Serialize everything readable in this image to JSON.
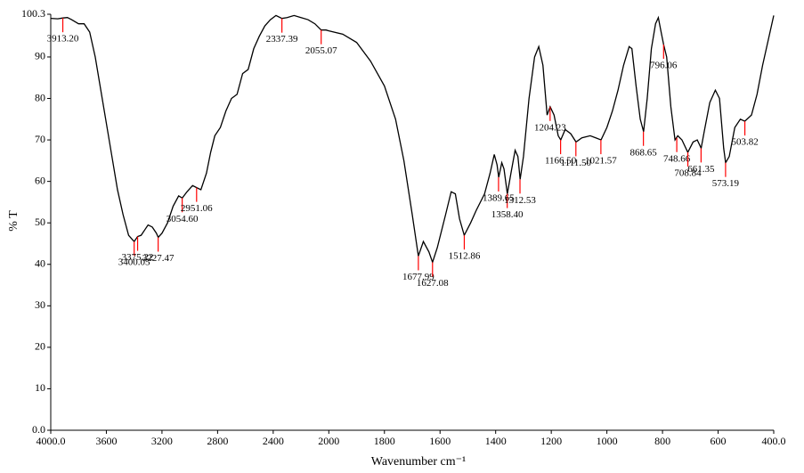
{
  "chart_data": {
    "type": "line",
    "x_label": "Wavenumber cm⁻¹",
    "y_label": "% T",
    "xlim": [
      4000,
      400
    ],
    "ylim": [
      0,
      100.3
    ],
    "x_expand_below": 2000,
    "x_expand_factor": 2,
    "xticks": [
      {
        "value": 4000,
        "label": "4000.0"
      },
      3600,
      3200,
      2800,
      2400,
      2000,
      1800,
      1600,
      1400,
      1200,
      1000,
      800,
      600,
      {
        "value": 400,
        "label": "400.0"
      }
    ],
    "yticks": [
      {
        "value": 0,
        "label": "0.0"
      },
      10,
      20,
      30,
      40,
      50,
      60,
      70,
      80,
      90,
      {
        "value": 100.3,
        "label": "100.3"
      }
    ],
    "x": [
      4000,
      3950,
      3913,
      3880,
      3850,
      3800,
      3760,
      3720,
      3680,
      3640,
      3600,
      3560,
      3520,
      3480,
      3440,
      3400,
      3375,
      3350,
      3320,
      3300,
      3270,
      3240,
      3227,
      3200,
      3160,
      3120,
      3080,
      3054,
      3020,
      2980,
      2951,
      2920,
      2880,
      2850,
      2820,
      2780,
      2740,
      2700,
      2660,
      2620,
      2580,
      2540,
      2500,
      2460,
      2420,
      2380,
      2337,
      2300,
      2250,
      2200,
      2150,
      2100,
      2055,
      2020,
      2000,
      1950,
      1900,
      1850,
      1800,
      1760,
      1730,
      1700,
      1678,
      1660,
      1640,
      1627,
      1610,
      1580,
      1560,
      1545,
      1530,
      1513,
      1490,
      1470,
      1440,
      1420,
      1405,
      1395,
      1389,
      1378,
      1370,
      1358,
      1345,
      1330,
      1320,
      1312,
      1300,
      1280,
      1260,
      1245,
      1230,
      1215,
      1204,
      1190,
      1175,
      1166,
      1150,
      1130,
      1111,
      1090,
      1060,
      1040,
      1021,
      1000,
      980,
      960,
      940,
      920,
      910,
      895,
      880,
      868,
      855,
      840,
      825,
      815,
      805,
      796,
      785,
      770,
      755,
      745,
      730,
      709,
      690,
      675,
      661,
      650,
      630,
      610,
      595,
      580,
      573,
      560,
      540,
      520,
      504,
      480,
      460,
      440,
      420,
      400
    ],
    "series": [
      {
        "color": "#000000",
        "values": [
          99.3,
          99.2,
          99.4,
          99.5,
          99,
          98,
          98,
          96,
          90,
          82,
          74,
          66,
          58,
          52,
          47,
          45.5,
          46.7,
          47,
          48.5,
          49.5,
          49,
          47.5,
          46.5,
          47.5,
          50,
          54,
          56.5,
          56,
          57.5,
          59,
          58.5,
          58,
          62,
          67,
          71,
          73,
          77,
          80,
          81,
          86,
          87,
          92,
          95,
          97.5,
          99,
          100,
          99.3,
          99.5,
          100,
          99.5,
          99,
          98,
          96.5,
          96.5,
          96.3,
          95.5,
          93.5,
          89,
          83,
          75,
          65,
          52,
          42,
          45.5,
          43,
          40.5,
          44,
          52,
          57.5,
          57,
          51,
          47,
          50,
          53,
          57,
          62,
          66.5,
          64,
          61,
          64.5,
          63,
          57,
          62,
          67.5,
          66,
          60.5,
          66,
          80,
          90,
          92.5,
          88,
          76,
          78,
          76,
          71,
          70,
          72.5,
          71.5,
          69.5,
          70.5,
          71,
          70.5,
          70,
          73,
          77,
          82,
          88,
          92.5,
          92,
          83,
          75,
          72,
          80,
          92,
          98,
          99.5,
          96,
          93,
          90,
          78,
          70,
          71,
          70,
          67,
          69.5,
          70,
          68,
          72,
          79,
          82,
          80,
          68,
          64.5,
          66,
          73,
          75,
          74.5,
          76,
          81,
          88,
          94,
          100
        ]
      }
    ],
    "annotation_color": "#ff0000",
    "annotations": [
      {
        "x": 3913.2,
        "y": 99.4,
        "label": "3913.20"
      },
      {
        "x": 3400.05,
        "y": 45.5,
        "label": "3400.05"
      },
      {
        "x": 3375.22,
        "y": 46.7,
        "label": "3375.22"
      },
      {
        "x": 3227.47,
        "y": 46.5,
        "label": "3227.47"
      },
      {
        "x": 3054.6,
        "y": 56,
        "label": "3054.60"
      },
      {
        "x": 2951.06,
        "y": 58.5,
        "label": "2951.06"
      },
      {
        "x": 2337.39,
        "y": 99.3,
        "label": "2337.39"
      },
      {
        "x": 2055.07,
        "y": 96.5,
        "label": "2055.07"
      },
      {
        "x": 1677.99,
        "y": 42,
        "label": "1677.99"
      },
      {
        "x": 1627.08,
        "y": 40.5,
        "label": "1627.08"
      },
      {
        "x": 1512.86,
        "y": 47,
        "label": "1512.86"
      },
      {
        "x": 1389.65,
        "y": 61,
        "label": "1389.65"
      },
      {
        "x": 1358.4,
        "y": 57,
        "label": "1358.40"
      },
      {
        "x": 1312.53,
        "y": 60.5,
        "label": "1312.53"
      },
      {
        "x": 1204.23,
        "y": 78,
        "label": "1204.23"
      },
      {
        "x": 1166.5,
        "y": 70,
        "label": "1166.50"
      },
      {
        "x": 1111.5,
        "y": 69.5,
        "label": "1111.50"
      },
      {
        "x": 1021.57,
        "y": 70,
        "label": "1021.57"
      },
      {
        "x": 868.65,
        "y": 72,
        "label": "868.65"
      },
      {
        "x": 796.06,
        "y": 93,
        "label": "796.06"
      },
      {
        "x": 748.66,
        "y": 70.5,
        "label": "748.66"
      },
      {
        "x": 708.84,
        "y": 67,
        "label": "708.84"
      },
      {
        "x": 661.35,
        "y": 68,
        "label": "661.35"
      },
      {
        "x": 573.19,
        "y": 64.5,
        "label": "573.19"
      },
      {
        "x": 503.82,
        "y": 74.5,
        "label": "503.82"
      }
    ]
  }
}
